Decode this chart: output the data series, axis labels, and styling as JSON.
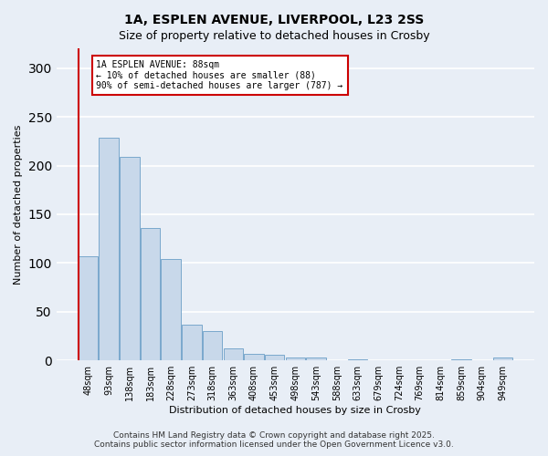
{
  "title_line1": "1A, ESPLEN AVENUE, LIVERPOOL, L23 2SS",
  "title_line2": "Size of property relative to detached houses in Crosby",
  "xlabel": "Distribution of detached houses by size in Crosby",
  "ylabel": "Number of detached properties",
  "categories": [
    "48sqm",
    "93sqm",
    "138sqm",
    "183sqm",
    "228sqm",
    "273sqm",
    "318sqm",
    "363sqm",
    "408sqm",
    "453sqm",
    "498sqm",
    "543sqm",
    "588sqm",
    "633sqm",
    "679sqm",
    "724sqm",
    "769sqm",
    "814sqm",
    "859sqm",
    "904sqm",
    "949sqm"
  ],
  "values": [
    107,
    229,
    209,
    136,
    104,
    37,
    30,
    12,
    7,
    6,
    3,
    3,
    0,
    1,
    0,
    0,
    0,
    0,
    1,
    0,
    3
  ],
  "bar_color": "#c8d8ea",
  "bar_edge_color": "#7aa8cc",
  "vline_color": "#cc0000",
  "ylim": [
    0,
    320
  ],
  "yticks": [
    0,
    50,
    100,
    150,
    200,
    250,
    300
  ],
  "annotation_text": "1A ESPLEN AVENUE: 88sqm\n← 10% of detached houses are smaller (88)\n90% of semi-detached houses are larger (787) →",
  "annotation_box_color": "white",
  "annotation_box_edge_color": "#cc0000",
  "footer_line1": "Contains HM Land Registry data © Crown copyright and database right 2025.",
  "footer_line2": "Contains public sector information licensed under the Open Government Licence v3.0.",
  "background_color": "#e8eef6",
  "grid_color": "white",
  "title_fontsize": 10,
  "subtitle_fontsize": 9,
  "xlabel_fontsize": 8,
  "ylabel_fontsize": 8,
  "tick_fontsize": 7,
  "annotation_fontsize": 7,
  "footer_fontsize": 6.5
}
